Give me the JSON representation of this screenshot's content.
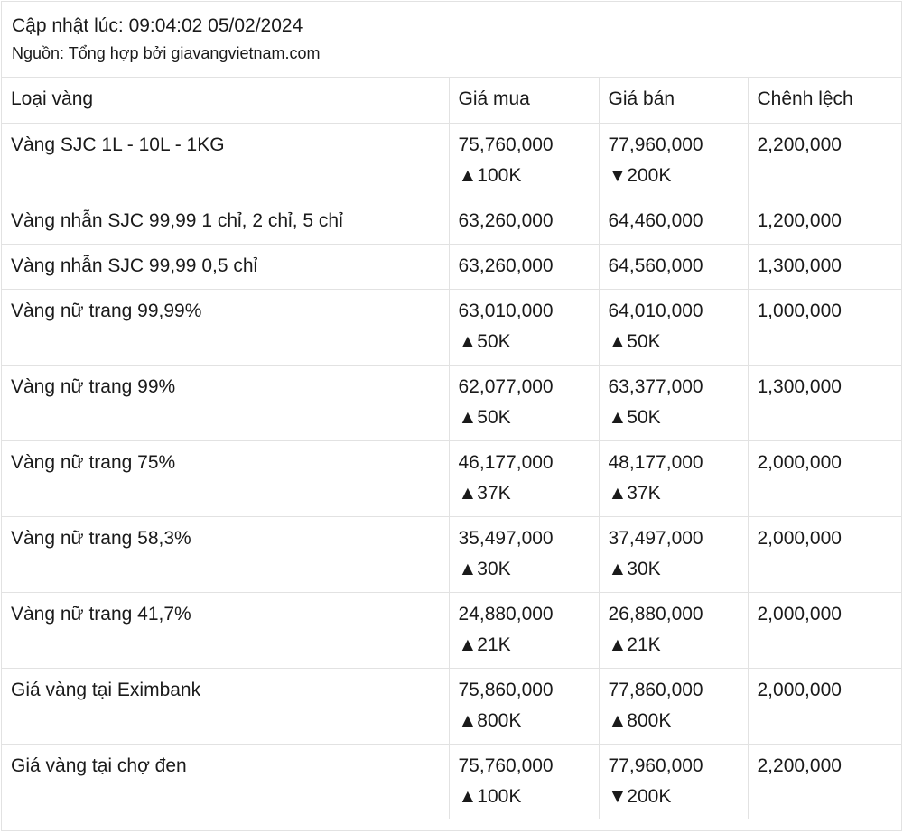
{
  "header": {
    "updated": "Cập nhật lúc: 09:04:02 05/02/2024",
    "source": "Nguồn: Tổng hợp bởi giavangvietnam.com"
  },
  "table": {
    "columns": [
      "Loại vàng",
      "Giá mua",
      "Giá bán",
      "Chênh lệch"
    ],
    "rows": [
      {
        "type": "Vàng SJC 1L - 10L - 1KG",
        "buy": "75,760,000",
        "buy_change": "▲100K",
        "sell": "77,960,000",
        "sell_change": "▼200K",
        "diff": "2,200,000"
      },
      {
        "type": "Vàng nhẫn SJC 99,99 1 chỉ, 2 chỉ, 5 chỉ",
        "buy": "63,260,000",
        "buy_change": "",
        "sell": "64,460,000",
        "sell_change": "",
        "diff": "1,200,000"
      },
      {
        "type": "Vàng nhẫn SJC 99,99 0,5 chỉ",
        "buy": "63,260,000",
        "buy_change": "",
        "sell": "64,560,000",
        "sell_change": "",
        "diff": "1,300,000"
      },
      {
        "type": "Vàng nữ trang 99,99%",
        "buy": "63,010,000",
        "buy_change": "▲50K",
        "sell": "64,010,000",
        "sell_change": "▲50K",
        "diff": "1,000,000"
      },
      {
        "type": "Vàng nữ trang 99%",
        "buy": "62,077,000",
        "buy_change": "▲50K",
        "sell": "63,377,000",
        "sell_change": "▲50K",
        "diff": "1,300,000"
      },
      {
        "type": "Vàng nữ trang 75%",
        "buy": "46,177,000",
        "buy_change": "▲37K",
        "sell": "48,177,000",
        "sell_change": "▲37K",
        "diff": "2,000,000"
      },
      {
        "type": "Vàng nữ trang 58,3%",
        "buy": "35,497,000",
        "buy_change": "▲30K",
        "sell": "37,497,000",
        "sell_change": "▲30K",
        "diff": "2,000,000"
      },
      {
        "type": "Vàng nữ trang 41,7%",
        "buy": "24,880,000",
        "buy_change": "▲21K",
        "sell": "26,880,000",
        "sell_change": "▲21K",
        "diff": "2,000,000"
      },
      {
        "type": "Giá vàng tại Eximbank",
        "buy": "75,860,000",
        "buy_change": "▲800K",
        "sell": "77,860,000",
        "sell_change": "▲800K",
        "diff": "2,000,000"
      },
      {
        "type": "Giá vàng tại chợ đen",
        "buy": "75,760,000",
        "buy_change": "▲100K",
        "sell": "77,960,000",
        "sell_change": "▼200K",
        "diff": "2,200,000"
      }
    ]
  }
}
